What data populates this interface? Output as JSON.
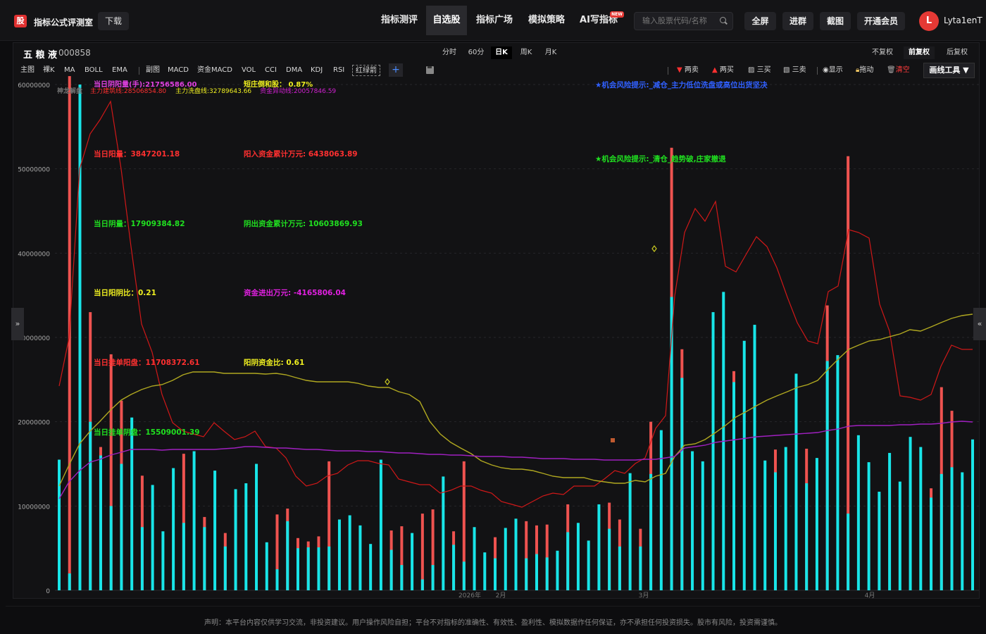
{
  "app": {
    "logo": "股",
    "title": "指标公式评测室",
    "download": "下载"
  },
  "nav": [
    "指标测评",
    "自选股",
    "指标广场",
    "模拟策略",
    "AI写指标"
  ],
  "nav_badge": "NEW",
  "search": {
    "placeholder": "输入股票代码/名称"
  },
  "top_buttons": [
    "全屏",
    "进群",
    "截图",
    "开通会员"
  ],
  "user": {
    "initial": "L",
    "name": "Lyta1enT"
  },
  "stock": {
    "name": "五 粮 液",
    "code": "000858"
  },
  "periods": [
    "分时",
    "60分",
    "日K",
    "周K",
    "月K"
  ],
  "fuquan": [
    "不复权",
    "前复权",
    "后复权"
  ],
  "indicators": [
    "主图",
    "裸K",
    "MA",
    "BOLL",
    "EMA",
    "副图",
    "MACD",
    "资金MACD",
    "VOL",
    "CCI",
    "DMA",
    "KDJ",
    "RSI",
    "红绿箭"
  ],
  "right_tools": [
    "两卖",
    "两买",
    "三买",
    "三卖",
    "显示",
    "拖动",
    "清空"
  ],
  "draw_tool": "画线工具 ▼",
  "side_left": "»",
  "side_right": "«",
  "chart_data": {
    "type": "bar",
    "title": "",
    "y_ticks": [
      "60000000",
      "50000000",
      "40000000",
      "30000000",
      "20000000",
      "10000000",
      "0"
    ],
    "ylim": [
      0,
      60000000
    ],
    "x_ticks": [
      "2026年",
      "2月",
      "3月",
      "4月"
    ],
    "legend_top": [
      {
        "text": "当日阴阳量(手):21756586.00",
        "color": "#e040e0"
      },
      {
        "text": "短庄倒和股： 0.87%",
        "color": "#f0f020"
      },
      {
        "text": "神龙解盘",
        "color": "#777777"
      },
      {
        "text": "主力建筑线:28506854.80",
        "color": "#ff3030"
      },
      {
        "text": "主力洗盘线:32789643.66",
        "color": "#f0f020"
      },
      {
        "text": "资金异动线:20057846.59",
        "color": "#d020d0"
      }
    ],
    "info_labels": [
      {
        "text": "当日阳量：3847201.18",
        "color": "#ff3030"
      },
      {
        "text": "阳入资金累计万元: 6438063.89",
        "color": "#ff3030"
      },
      {
        "text": "当日阴量：17909384.82",
        "color": "#20e020"
      },
      {
        "text": "阴出资金累计万元: 10603869.93",
        "color": "#20e020"
      },
      {
        "text": "当日阳阴比：0.21",
        "color": "#f0f020"
      },
      {
        "text": "资金进出万元: -4165806.04",
        "color": "#e020e0"
      },
      {
        "text": "当日挂单阳盘：11708372.61",
        "color": "#ff3030"
      },
      {
        "text": "阳阴资金比: 0.61",
        "color": "#f0f020"
      },
      {
        "text": "当日挂单阴盘：15509001.39",
        "color": "#20e020"
      }
    ],
    "notices": [
      {
        "text": "★机会风险提示:_减仓_主力低位洗盘或高位出货坚决",
        "color": "#3060ff"
      },
      {
        "text": "★机会风险提示:_清仓_趋势破,庄家撤退",
        "color": "#20e020"
      }
    ],
    "cyan": [
      15.5,
      2,
      60,
      20,
      16,
      10,
      15,
      20.5,
      7.5,
      12.5,
      7,
      14.5,
      8,
      16.5,
      7.5,
      14.2,
      5.2,
      12,
      12.7,
      15,
      5.7,
      2.5,
      8.2,
      5,
      5.1,
      5.1,
      5.2,
      8.4,
      8.9,
      7.7,
      5.5,
      15.5,
      4.8,
      3.0,
      6.8,
      1.3,
      3.0,
      13.5,
      5.4,
      3.4,
      7.5,
      4.5,
      3.8,
      7.4,
      8.5,
      3.8,
      4.3,
      3.9,
      4.7,
      6.9,
      8.0,
      5.9,
      10.2,
      7.3,
      5.2,
      13.9,
      5.2,
      13.8,
      19.0,
      34.8,
      25.2,
      16.5,
      15.3,
      33.0,
      35.4,
      24.7,
      29.6,
      31.5,
      15.4,
      14.0,
      17.0,
      25.7,
      12.7,
      15.7,
      27.2,
      27.9,
      9.1,
      18.4,
      15.2,
      11.7,
      16.3,
      12.9,
      18.2,
      17.0,
      11.0,
      13.8,
      14.6,
      14.0,
      17.9
    ],
    "red": [
      0,
      61,
      0,
      33,
      17,
      28,
      22.5,
      0,
      13.6,
      0,
      0,
      0,
      16.2,
      0,
      8.7,
      0,
      6.8,
      10.7,
      0,
      0,
      0,
      9.0,
      9.7,
      6.2,
      5.8,
      6.4,
      15.3,
      0,
      0,
      0,
      0,
      0,
      7.1,
      7.6,
      0,
      9.1,
      9.6,
      0,
      7.0,
      15.3,
      0,
      0,
      6.3,
      0,
      0,
      8.2,
      7.7,
      7.8,
      0,
      10.2,
      0,
      0,
      0,
      10.4,
      8.4,
      0,
      7.3,
      20,
      0,
      52.5,
      28.6,
      0,
      0,
      0,
      0,
      26.0,
      0,
      0,
      0,
      16.7,
      0,
      0,
      16.8,
      0,
      33.8,
      0,
      51.5,
      0,
      0,
      0,
      0,
      0,
      0,
      0,
      12.1,
      24.1,
      21.3,
      0,
      0
    ]
  },
  "footer": "声明：本平台内容仅供学习交流，非投资建议。用户操作风险自担；平台不对指标的准确性、有效性、盈利性、模拟数据作任何保证，亦不承担任何投资损失。股市有风险，投资需谨慎。"
}
